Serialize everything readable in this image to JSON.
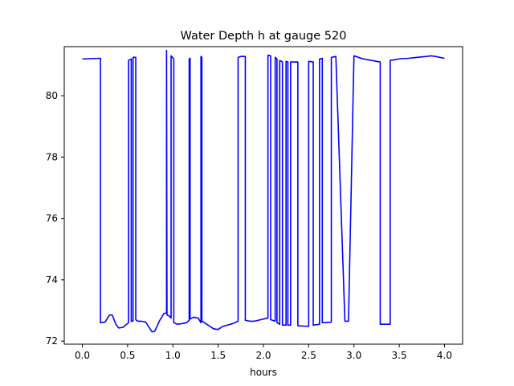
{
  "chart_data": {
    "type": "line",
    "title": "Water Depth h at gauge 520",
    "xlabel": "hours",
    "ylabel": "",
    "xlim": [
      -0.2,
      4.2
    ],
    "ylim": [
      71.9,
      81.6
    ],
    "xticks": [
      0.0,
      0.5,
      1.0,
      1.5,
      2.0,
      2.5,
      3.0,
      3.5,
      4.0
    ],
    "xtick_labels": [
      "0.0",
      "0.5",
      "1.0",
      "1.5",
      "2.0",
      "2.5",
      "3.0",
      "3.5",
      "4.0"
    ],
    "yticks": [
      72,
      74,
      76,
      78,
      80
    ],
    "ytick_labels": [
      "72",
      "74",
      "76",
      "78",
      "80"
    ],
    "grid": false,
    "line_color": "#0000ff",
    "series": [
      {
        "x": [
          0.0,
          0.2,
          0.2,
          0.25,
          0.3,
          0.33,
          0.37,
          0.4,
          0.45,
          0.51,
          0.51,
          0.54,
          0.54,
          0.56,
          0.56,
          0.59,
          0.59,
          0.61,
          0.65,
          0.7,
          0.73,
          0.77,
          0.8,
          0.85,
          0.9,
          0.93,
          0.93,
          0.935,
          0.96,
          0.98,
          0.98,
          1.01,
          1.01,
          1.05,
          1.1,
          1.15,
          1.18,
          1.18,
          1.19,
          1.19,
          1.23,
          1.28,
          1.31,
          1.31,
          1.32,
          1.32,
          1.35,
          1.4,
          1.45,
          1.5,
          1.55,
          1.6,
          1.67,
          1.72,
          1.72,
          1.75,
          1.8,
          1.8,
          1.85,
          1.9,
          2.0,
          2.05,
          2.05,
          2.08,
          2.08,
          2.13,
          2.13,
          2.15,
          2.15,
          2.18,
          2.18,
          2.21,
          2.21,
          2.25,
          2.25,
          2.27,
          2.27,
          2.3,
          2.3,
          2.38,
          2.38,
          2.5,
          2.5,
          2.55,
          2.55,
          2.62,
          2.62,
          2.65,
          2.65,
          2.75,
          2.75,
          2.8,
          2.9,
          2.94,
          2.94,
          3.0,
          3.1,
          3.2,
          3.25,
          3.29,
          3.29,
          3.4,
          3.4,
          3.5,
          3.6,
          3.7,
          3.8,
          3.85,
          3.9,
          4.0
        ],
        "y": [
          81.2,
          81.22,
          72.6,
          72.62,
          72.85,
          72.85,
          72.55,
          72.43,
          72.45,
          72.6,
          81.15,
          81.2,
          72.65,
          72.65,
          81.25,
          81.25,
          72.7,
          72.65,
          72.65,
          72.62,
          72.48,
          72.3,
          72.32,
          72.65,
          72.9,
          72.92,
          81.48,
          72.85,
          72.82,
          72.75,
          81.3,
          81.2,
          72.6,
          72.55,
          72.57,
          72.6,
          72.68,
          81.2,
          81.22,
          72.72,
          72.78,
          72.75,
          72.6,
          81.28,
          81.25,
          72.65,
          72.6,
          72.5,
          72.4,
          72.38,
          72.48,
          72.52,
          72.58,
          72.65,
          81.25,
          81.28,
          81.28,
          72.68,
          72.65,
          72.65,
          72.72,
          72.75,
          81.32,
          81.3,
          72.7,
          72.65,
          81.25,
          81.2,
          72.6,
          72.55,
          81.15,
          81.1,
          72.52,
          72.52,
          81.12,
          81.1,
          72.52,
          72.52,
          81.1,
          81.1,
          72.5,
          72.48,
          81.12,
          81.1,
          72.52,
          72.55,
          81.2,
          81.22,
          72.6,
          72.62,
          81.25,
          81.28,
          72.65,
          72.65,
          72.7,
          81.3,
          81.2,
          81.15,
          81.12,
          81.1,
          72.55,
          72.55,
          81.15,
          81.2,
          81.22,
          81.25,
          81.28,
          81.3,
          81.28,
          81.22
        ]
      }
    ]
  }
}
